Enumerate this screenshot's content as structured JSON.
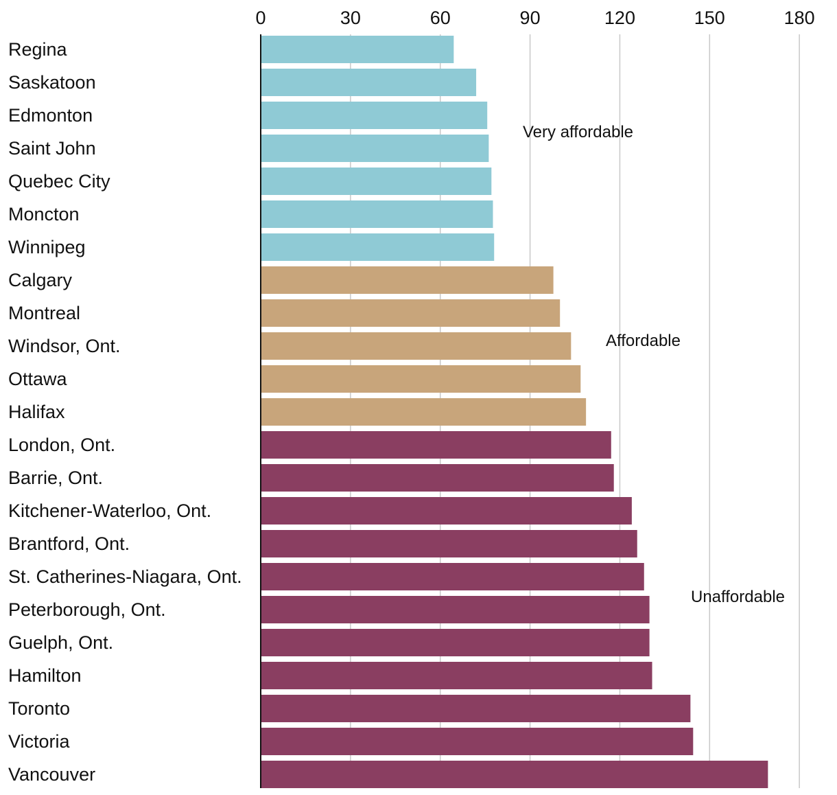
{
  "chart_data": {
    "type": "bar",
    "orientation": "horizontal",
    "title": "",
    "xlabel": "",
    "ylabel": "",
    "xlim": [
      0,
      180
    ],
    "x_ticks": [
      "0",
      "30",
      "60",
      "90",
      "120",
      "150",
      "180"
    ],
    "grid": "vertical",
    "categories": [
      "Regina",
      "Saskatoon",
      "Edmonton",
      "Saint John",
      "Quebec City",
      "Moncton",
      "Winnipeg",
      "Calgary",
      "Montreal",
      "Windsor, Ont.",
      "Ottawa",
      "Halifax",
      "London, Ont.",
      "Barrie, Ont.",
      "Kitchener-Waterloo, Ont.",
      "Brantford, Ont.",
      "St. Catherines-Niagara, Ont.",
      "Peterborough, Ont.",
      "Guelph, Ont.",
      "Hamilton",
      "Toronto",
      "Victoria",
      "Vancouver"
    ],
    "values": [
      64.5,
      72,
      75.7,
      76.2,
      77.1,
      77.6,
      78,
      97.8,
      100,
      103.7,
      106.9,
      108.7,
      117.1,
      118,
      124,
      125.8,
      128.1,
      129.9,
      129.9,
      130.8,
      143.6,
      144.5,
      169.5
    ],
    "groups": [
      {
        "name": "Very affordable",
        "color": "#8fcad5",
        "start": 0,
        "end": 6
      },
      {
        "name": "Affordable",
        "color": "#c8a57b",
        "start": 7,
        "end": 11
      },
      {
        "name": "Unaffordable",
        "color": "#8a3e61",
        "start": 12,
        "end": 22
      }
    ]
  }
}
